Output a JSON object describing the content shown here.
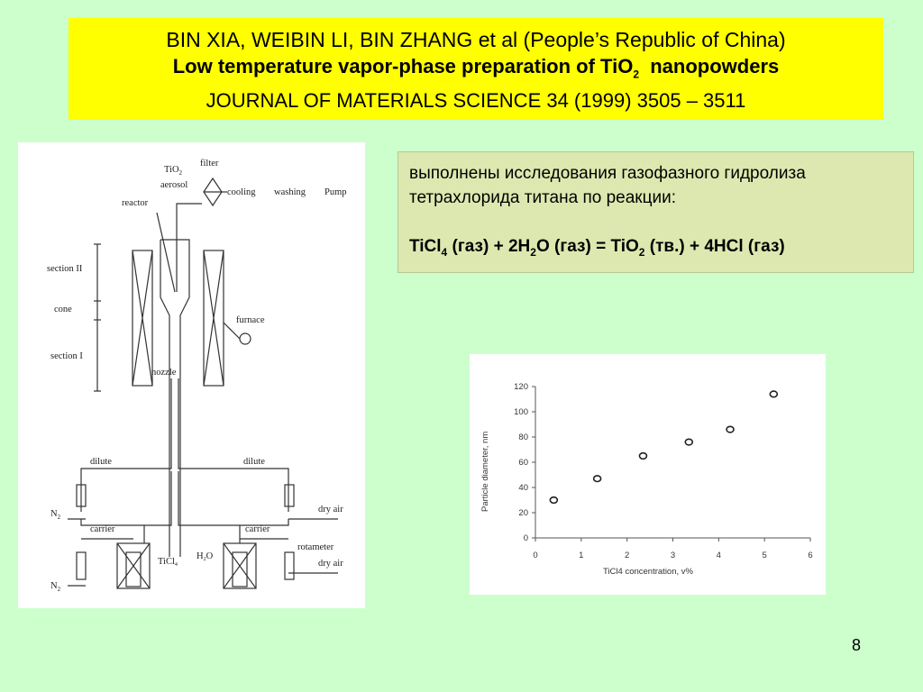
{
  "header": {
    "authors": "BIN XIA, WEIBIN LI, BIN ZHANG et al (People’s Republic of China)",
    "title_main": "Low temperature vapor-phase preparation of TiO",
    "title_sub": "2",
    "title_tail": "  nanopowders",
    "journal": "JOURNAL OF MATERIALS SCIENCE 34 (1999) 3505 – 3511"
  },
  "description": {
    "text": "выполнены исследования газофазного гидролиза тетрахлорида титана по реакции:",
    "eq": [
      {
        "t": "TiCl"
      },
      {
        "s": "4"
      },
      {
        "t": " (газ) + 2H"
      },
      {
        "s": "2"
      },
      {
        "t": "O (газ) = TiO"
      },
      {
        "s": "2"
      },
      {
        "t": " (тв.) + 4HCl (газ)"
      }
    ]
  },
  "diagram_labels": {
    "tio2": "TiO",
    "tio2_sub": "2",
    "aerosol": "aerosol",
    "filter": "filter",
    "cooling": "cooling",
    "washing": "washing",
    "pump": "Pump",
    "reactor": "reactor",
    "section2": "section II",
    "cone": "cone",
    "section1": "section I",
    "furnace": "furnace",
    "nozzle": "nozzle",
    "dilute": "dilute",
    "n2": "N",
    "n2_sub": "2",
    "carrier": "carrier",
    "dry_air": "dry air",
    "rotameter": "rotameter",
    "ticl4": "TiCl",
    "ticl4_sub": "4",
    "h2o": "H",
    "h2o_sub": "2",
    "h2o_o": "O"
  },
  "chart_data": {
    "type": "scatter",
    "xlabel": "TiCl4 concentration, v%",
    "ylabel": "Particle diameter, nm",
    "xlim": [
      0,
      6
    ],
    "ylim": [
      0,
      120
    ],
    "xticks": [
      0,
      1,
      2,
      3,
      4,
      5,
      6
    ],
    "yticks": [
      0,
      20,
      40,
      60,
      80,
      100,
      120
    ],
    "grid": false,
    "points": [
      {
        "x": 0.4,
        "y": 30
      },
      {
        "x": 1.35,
        "y": 47
      },
      {
        "x": 2.35,
        "y": 65
      },
      {
        "x": 3.35,
        "y": 76
      },
      {
        "x": 4.25,
        "y": 86
      },
      {
        "x": 5.2,
        "y": 114
      }
    ]
  },
  "slide_number": "8"
}
